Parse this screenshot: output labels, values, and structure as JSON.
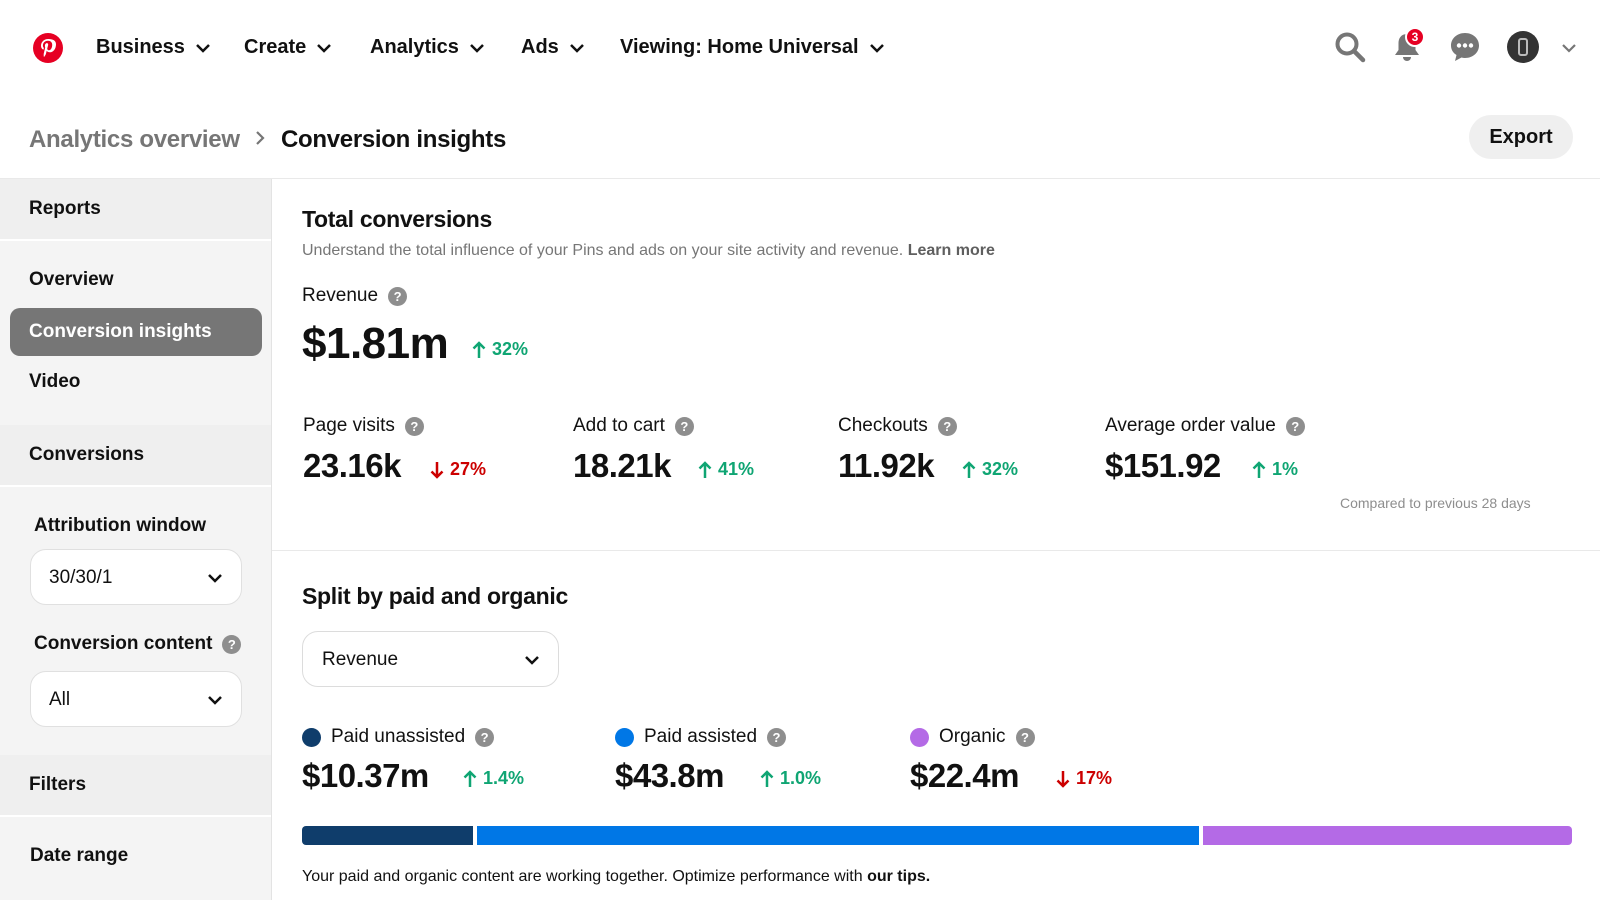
{
  "nav": {
    "items": [
      "Business",
      "Create",
      "Analytics",
      "Ads",
      "Viewing: Home Universal"
    ],
    "notification_count": "3"
  },
  "breadcrumb": {
    "parent": "Analytics overview",
    "current": "Conversion insights"
  },
  "export_label": "Export",
  "sidebar": {
    "reports_header": "Reports",
    "items": [
      "Overview",
      "Conversion insights",
      "Video"
    ],
    "conversions_header": "Conversions",
    "attribution_label": "Attribution window",
    "attribution_value": "30/30/1",
    "content_label": "Conversion content",
    "content_value": "All",
    "filters_header": "Filters",
    "date_range_label": "Date range"
  },
  "total": {
    "title": "Total conversions",
    "subtitle": "Understand the total influence of your Pins and ads on your site activity and revenue.",
    "learn_more": "Learn more",
    "revenue_label": "Revenue",
    "revenue_value": "$1.81m",
    "revenue_delta": "32%",
    "metrics": [
      {
        "label": "Page visits",
        "value": "23.16k",
        "delta": "27%",
        "direction": "down"
      },
      {
        "label": "Add to cart",
        "value": "18.21k",
        "delta": "41%",
        "direction": "up"
      },
      {
        "label": "Checkouts",
        "value": "11.92k",
        "delta": "32%",
        "direction": "up"
      },
      {
        "label": "Average order value",
        "value": "$151.92",
        "delta": "1%",
        "direction": "up"
      }
    ],
    "compared": "Compared to previous 28 days"
  },
  "split": {
    "title": "Split by paid and organic",
    "select_value": "Revenue",
    "series": [
      {
        "label": "Paid unassisted",
        "value": "$10.37m",
        "delta": "1.4%",
        "direction": "up",
        "color": "#0f3d6b",
        "amount": 10.37
      },
      {
        "label": "Paid assisted",
        "value": "$43.8m",
        "delta": "1.0%",
        "direction": "up",
        "color": "#0077e6",
        "amount": 43.8
      },
      {
        "label": "Organic",
        "value": "$22.4m",
        "delta": "17%",
        "direction": "down",
        "color": "#b46ae6",
        "amount": 22.4
      }
    ],
    "footer_text": "Your paid and organic content are working together. Optimize performance with",
    "footer_link": "our tips."
  },
  "colors": {
    "brand": "#e60023",
    "up": "#0fa573",
    "down": "#cc0000"
  }
}
